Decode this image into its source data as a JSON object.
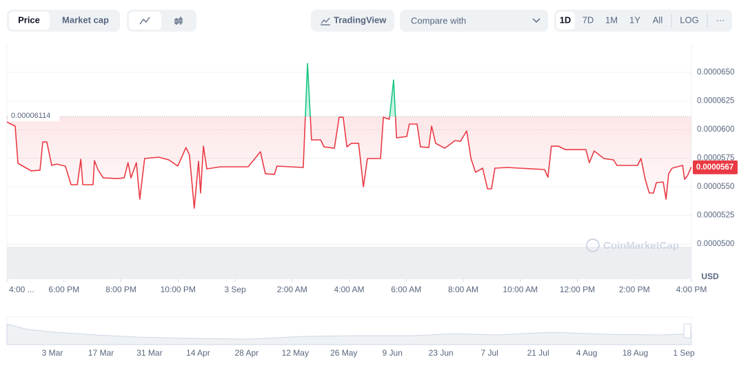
{
  "toolbar": {
    "price": "Price",
    "market_cap": "Market cap",
    "tradingview": "TradingView",
    "compare": "Compare with",
    "ranges": [
      "1D",
      "7D",
      "1M",
      "1Y",
      "All"
    ],
    "log": "LOG",
    "more": "···"
  },
  "chart_data": {
    "type": "line",
    "x": [
      0,
      0.29,
      0.39,
      0.73,
      0.85,
      1.16,
      1.26,
      1.4,
      1.57,
      1.74,
      2.05,
      2.25,
      2.47,
      2.59,
      2.66,
      3.02,
      3.07,
      3.19,
      3.38,
      3.87,
      4.11,
      4.25,
      4.35,
      4.54,
      4.66,
      4.83,
      5.32,
      5.68,
      5.99,
      6.28,
      6.4,
      6.57,
      6.72,
      6.79,
      6.89,
      7.01,
      7.49,
      8.46,
      8.89,
      9.06,
      9.38,
      9.47,
      10.39,
      10.54,
      10.68,
      11.0,
      11.12,
      11.48,
      11.65,
      11.79,
      11.92,
      12.08,
      12.33,
      12.5,
      12.64,
      13.1,
      13.2,
      13.41,
      13.56,
      13.66,
      14.02,
      14.11,
      14.38,
      14.5,
      14.79,
      14.89,
      15.03,
      15.35,
      15.71,
      15.9,
      16.12,
      16.27,
      16.43,
      16.68,
      16.85,
      16.99,
      17.11,
      17.55,
      18.85,
      18.97,
      19.09,
      19.34,
      19.58,
      20.3,
      20.42,
      20.59,
      20.93,
      21.27,
      21.39,
      22.11,
      22.23,
      22.38,
      22.52,
      22.67,
      22.77,
      23.01,
      23.11,
      23.2,
      23.32,
      23.69,
      23.76,
      23.86,
      24
    ],
    "values": [
      6.066e-05,
      6.03e-05,
      5.705e-05,
      5.657e-05,
      5.639e-05,
      5.645e-05,
      5.892e-05,
      5.892e-05,
      5.687e-05,
      5.699e-05,
      5.681e-05,
      5.518e-05,
      5.518e-05,
      5.741e-05,
      5.518e-05,
      5.518e-05,
      5.729e-05,
      5.651e-05,
      5.578e-05,
      5.572e-05,
      5.578e-05,
      5.711e-05,
      5.578e-05,
      5.711e-05,
      5.392e-05,
      5.747e-05,
      5.759e-05,
      5.735e-05,
      5.681e-05,
      5.843e-05,
      5.777e-05,
      5.313e-05,
      5.723e-05,
      5.446e-05,
      5.855e-05,
      5.657e-05,
      5.675e-05,
      5.675e-05,
      5.807e-05,
      5.614e-05,
      5.608e-05,
      5.681e-05,
      5.669e-05,
      6.578e-05,
      5.91e-05,
      5.91e-05,
      5.849e-05,
      5.837e-05,
      6.108e-05,
      6.108e-05,
      5.849e-05,
      5.88e-05,
      5.88e-05,
      5.5e-05,
      5.747e-05,
      5.747e-05,
      6.108e-05,
      6.09e-05,
      6.434e-05,
      5.928e-05,
      5.94e-05,
      6.048e-05,
      6.048e-05,
      5.849e-05,
      5.843e-05,
      6.03e-05,
      5.88e-05,
      5.837e-05,
      5.904e-05,
      5.898e-05,
      5.988e-05,
      5.747e-05,
      5.627e-05,
      5.663e-05,
      5.482e-05,
      5.482e-05,
      5.663e-05,
      5.669e-05,
      5.651e-05,
      5.584e-05,
      5.855e-05,
      5.855e-05,
      5.825e-05,
      5.825e-05,
      5.711e-05,
      5.813e-05,
      5.747e-05,
      5.735e-05,
      5.687e-05,
      5.687e-05,
      5.747e-05,
      5.566e-05,
      5.446e-05,
      5.446e-05,
      5.536e-05,
      5.542e-05,
      5.392e-05,
      5.614e-05,
      5.663e-05,
      5.687e-05,
      5.566e-05,
      5.596e-05,
      5.675e-05
    ],
    "color": "#ea3943",
    "up_color": "#16c784",
    "reference": 6.114e-05,
    "last_price": 5.67e-05,
    "xlim": [
      0,
      24
    ],
    "xticks": [
      {
        "value": 0,
        "label": "4:00 ..."
      },
      {
        "value": 2,
        "label": "6:00 PM"
      },
      {
        "value": 4,
        "label": "8:00 PM"
      },
      {
        "value": 6,
        "label": "10:00 PM"
      },
      {
        "value": 8,
        "label": "3 Sep"
      },
      {
        "value": 10,
        "label": "2:00 AM"
      },
      {
        "value": 12,
        "label": "4:00 AM"
      },
      {
        "value": 14,
        "label": "6:00 AM"
      },
      {
        "value": 16,
        "label": "8:00 AM"
      },
      {
        "value": 18,
        "label": "10:00 AM"
      },
      {
        "value": 20,
        "label": "12:00 PM"
      },
      {
        "value": 22,
        "label": "2:00 PM"
      },
      {
        "value": 24,
        "label": "4:00 PM"
      }
    ],
    "ylim": [
      4.693e-05,
      6.753e-05
    ],
    "yticks": [
      {
        "value": 5e-05,
        "label": "0.0000500"
      },
      {
        "value": 5.25e-05,
        "label": "0.0000525"
      },
      {
        "value": 5.5e-05,
        "label": "0.0000550"
      },
      {
        "value": 5.75e-05,
        "label": "0.0000575"
      },
      {
        "value": 6e-05,
        "label": "0.0000600"
      },
      {
        "value": 6.25e-05,
        "label": "0.0000625"
      },
      {
        "value": 6.5e-05,
        "label": "0.0000650"
      }
    ],
    "grid": true,
    "unit": "USD",
    "watermark": "CoinMarketCap"
  },
  "navigator": {
    "labels": [
      "3 Mar",
      "17 Mar",
      "31 Mar",
      "14 Apr",
      "28 Apr",
      "12 May",
      "26 May",
      "9 Jun",
      "23 Jun",
      "7 Jul",
      "21 Jul",
      "4 Aug",
      "18 Aug",
      "1 Sep"
    ]
  }
}
